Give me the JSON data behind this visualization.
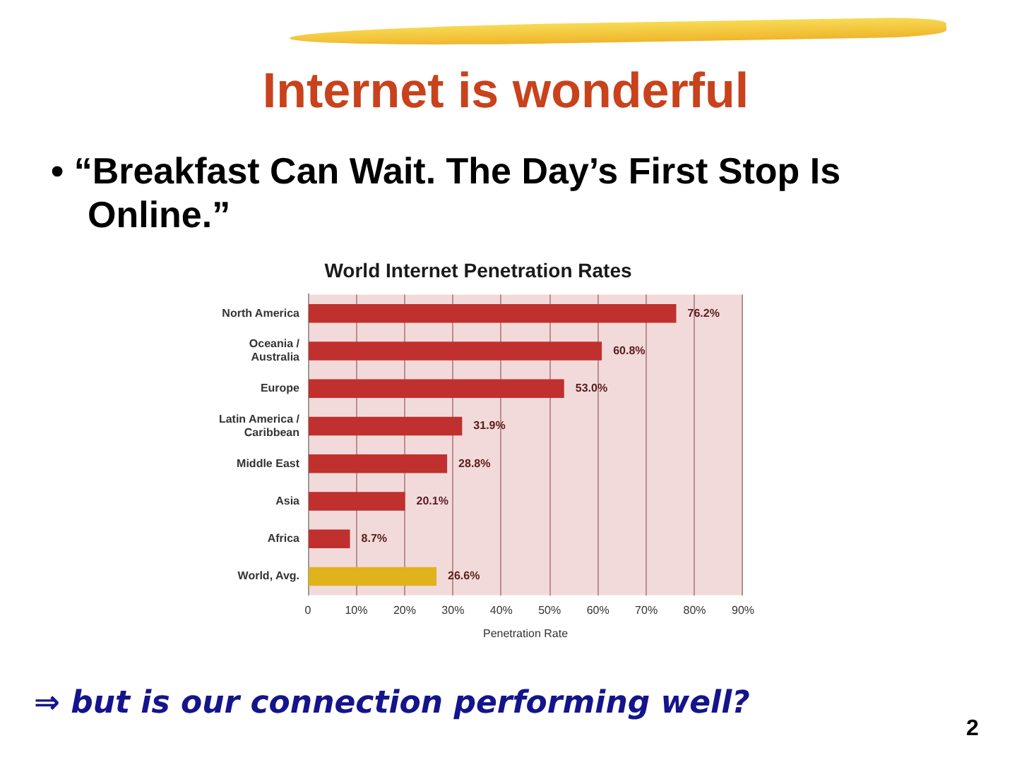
{
  "chart_data": {
    "type": "bar",
    "orientation": "horizontal",
    "title": "World Internet Penetration Rates",
    "xlabel": "Penetration Rate",
    "categories": [
      "North America",
      "Oceania / Australia",
      "Europe",
      "Latin America / Caribbean",
      "Middle East",
      "Asia",
      "Africa",
      "World, Avg."
    ],
    "values": [
      76.2,
      60.8,
      53.0,
      31.9,
      28.8,
      20.1,
      8.7,
      26.6
    ],
    "value_labels": [
      "76.2%",
      "60.8%",
      "53.0%",
      "31.9%",
      "28.8%",
      "20.1%",
      "8.7%",
      "26.6%"
    ],
    "colors": [
      "#c0302e",
      "#c0302e",
      "#c0302e",
      "#c0302e",
      "#c0302e",
      "#c0302e",
      "#c0302e",
      "#e0b21c"
    ],
    "xlim": [
      0,
      90
    ],
    "xticks": [
      0,
      {
        "value": 10,
        "label": "10%"
      },
      {
        "value": 20,
        "label": "20%"
      },
      {
        "value": 30,
        "label": "30%"
      },
      {
        "value": 40,
        "label": "40%"
      },
      {
        "value": 50,
        "label": "50%"
      },
      {
        "value": 60,
        "label": "60%"
      },
      {
        "value": 70,
        "label": "70%"
      },
      {
        "value": 80,
        "label": "80%"
      },
      {
        "value": 90,
        "label": "90%"
      }
    ],
    "grid": "x",
    "annotations": [
      "Internet is wonderful",
      "• “Breakfast Can Wait. The Day’s First Stop Is Online.”",
      "⇒ but is our connection performing well?",
      "2"
    ]
  }
}
